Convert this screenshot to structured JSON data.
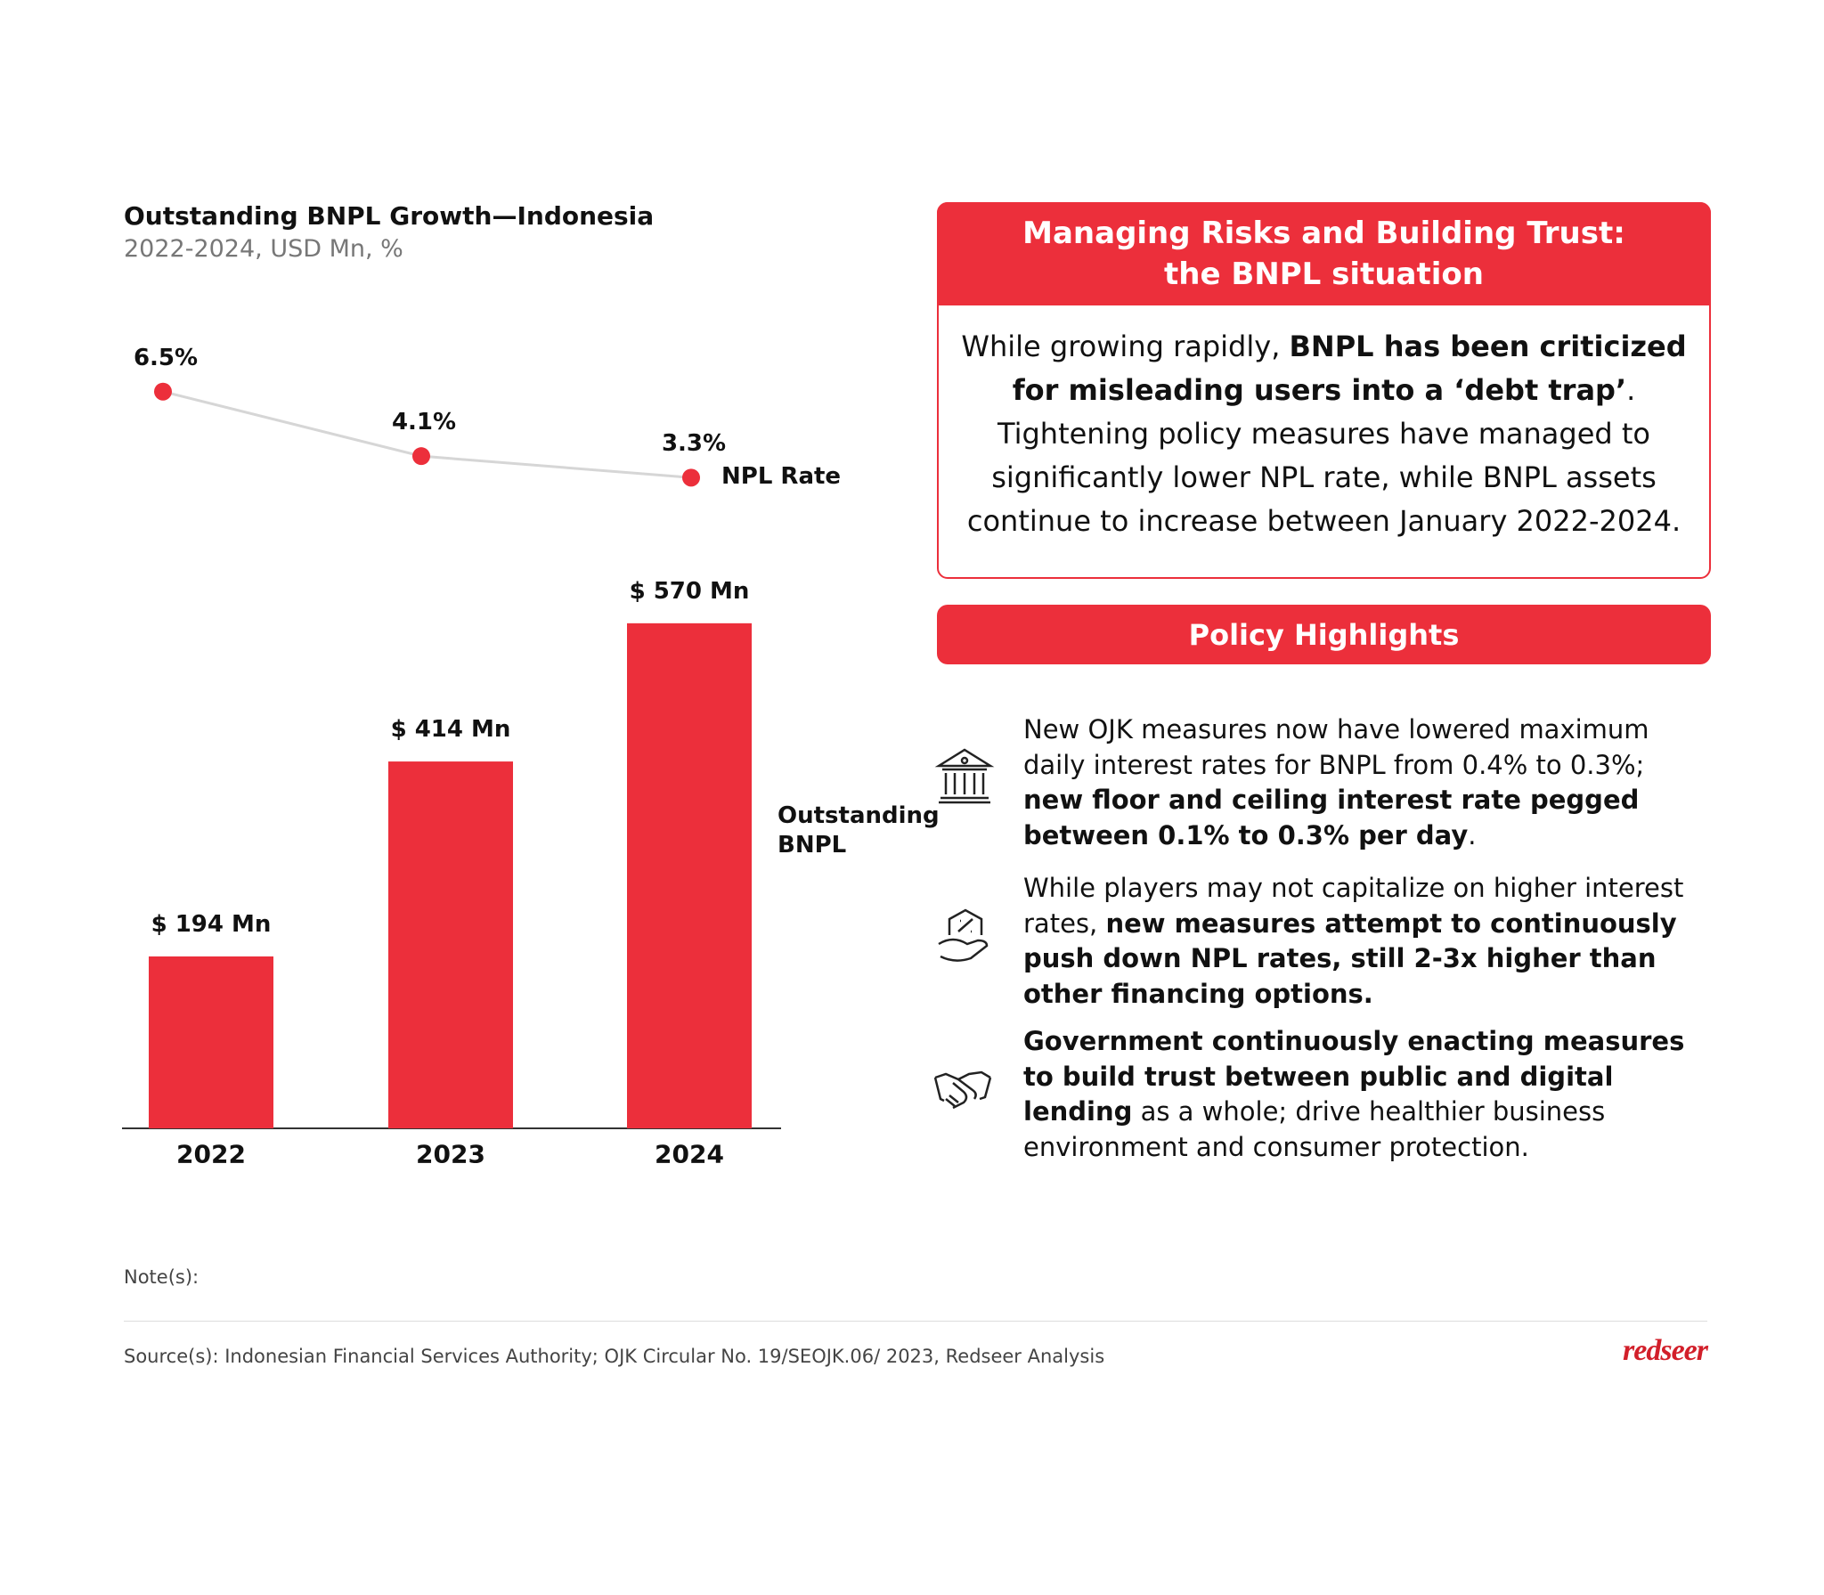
{
  "chart_data": [
    {
      "type": "bar",
      "title": "Outstanding BNPL Growth—Indonesia",
      "subtitle": "2022-2024, USD Mn, %",
      "categories": [
        "2022",
        "2023",
        "2024"
      ],
      "series": [
        {
          "name": "Outstanding BNPL",
          "color": "#ec2f3b",
          "values": [
            194,
            414,
            570
          ],
          "value_labels": [
            "$ 194 Mn",
            "$ 414 Mn",
            "$ 570 Mn"
          ]
        }
      ]
    },
    {
      "type": "line",
      "series": [
        {
          "name": "NPL Rate",
          "color": "#ec2f3b",
          "line_color": "#d6d6d6",
          "values": [
            6.5,
            4.1,
            3.3
          ],
          "value_labels": [
            "6.5%",
            "4.1%",
            "3.3%"
          ]
        }
      ]
    }
  ],
  "panel": {
    "title_lines": [
      "Managing Risks and Building Trust:",
      "the BNPL situation"
    ],
    "body": [
      {
        "text": "While growing rapidly, ",
        "bold": false
      },
      {
        "text": "BNPL has been criticized for misleading users into a ‘debt trap’",
        "bold": true
      },
      {
        "text": ". Tightening policy measures have managed to significantly lower NPL rate, while BNPL assets continue to increase between January 2022-2024.",
        "bold": false
      }
    ]
  },
  "policy": {
    "title": "Policy Highlights",
    "items": [
      [
        {
          "text": "New OJK measures now have lowered maximum daily interest rates for BNPL from 0.4% to 0.3%; ",
          "bold": false
        },
        {
          "text": "new floor and ceiling interest rate pegged between 0.1% to 0.3% per day",
          "bold": true
        },
        {
          "text": ".",
          "bold": false
        }
      ],
      [
        {
          "text": "While players may not capitalize on higher interest rates, ",
          "bold": false
        },
        {
          "text": "new measures attempt to continuously push down NPL rates, still 2-3x higher than other financing options.",
          "bold": true
        }
      ],
      [
        {
          "text": "Government continuously enacting measures to build trust between public and digital lending",
          "bold": true
        },
        {
          "text": " as a whole; drive healthier business environment and consumer protection.",
          "bold": false
        }
      ]
    ]
  },
  "notes": "Note(s):",
  "source": "Source(s): Indonesian Financial Services Authority; OJK Circular No. 19/SEOJK.06/ 2023, Redseer Analysis",
  "logo": "redseer"
}
